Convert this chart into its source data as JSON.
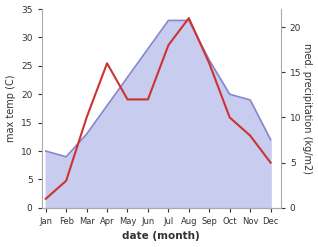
{
  "months": [
    "Jan",
    "Feb",
    "Mar",
    "Apr",
    "May",
    "Jun",
    "Jul",
    "Aug",
    "Sep",
    "Oct",
    "Nov",
    "Dec"
  ],
  "month_positions": [
    1,
    2,
    3,
    4,
    5,
    6,
    7,
    8,
    9,
    10,
    11,
    12
  ],
  "temperature": [
    10,
    9,
    13,
    18,
    23,
    28,
    33,
    33,
    26,
    20,
    19,
    12
  ],
  "precipitation": [
    1,
    3,
    10,
    16,
    12,
    12,
    18,
    21,
    16,
    10,
    8,
    5
  ],
  "temp_color": "#8888cc",
  "temp_fill_color": "#c8ccee",
  "precip_color": "#cc3333",
  "temp_ylim": [
    0,
    35
  ],
  "precip_ylim": [
    0,
    22
  ],
  "xlabel": "date (month)",
  "ylabel_left": "max temp (C)",
  "ylabel_right": "med. precipitation (kg/m2)",
  "bg_color": "#ffffff",
  "yticks_left": [
    0,
    5,
    10,
    15,
    20,
    25,
    30,
    35
  ],
  "yticks_right": [
    0,
    5,
    10,
    15,
    20
  ]
}
